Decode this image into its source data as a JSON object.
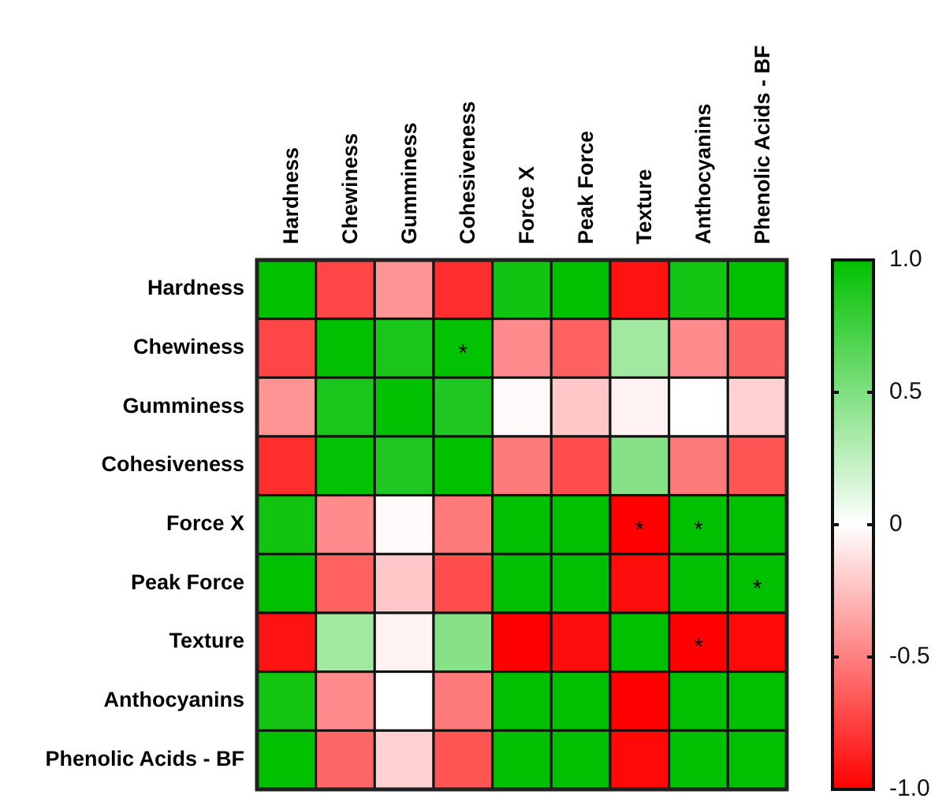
{
  "chart_data": {
    "type": "heatmap",
    "categories": [
      "Hardness",
      "Chewiness",
      "Gumminess",
      "Cohesiveness",
      "Force X",
      "Peak Force",
      "Texture",
      "Anthocyanins",
      "Phenolic Acids - BF"
    ],
    "y_categories": [
      "Hardness",
      "Chewiness",
      "Gumminess",
      "Cohesiveness",
      "Force X",
      "Peak Force",
      "Texture",
      "Anthocyanins",
      "Phenolic Acids - BF"
    ],
    "cells": [
      [
        1,
        -0.73,
        -0.42,
        -0.82,
        0.93,
        1,
        -0.93,
        0.92,
        1
      ],
      [
        -0.73,
        1,
        0.9,
        0.99,
        -0.45,
        -0.62,
        0.37,
        -0.45,
        -0.6
      ],
      [
        -0.42,
        0.9,
        1,
        0.87,
        -0.02,
        -0.22,
        -0.05,
        0,
        -0.18
      ],
      [
        -0.82,
        0.99,
        0.87,
        1,
        -0.52,
        -0.7,
        0.47,
        -0.52,
        -0.67
      ],
      [
        0.93,
        -0.45,
        -0.02,
        -0.52,
        1,
        1,
        -1,
        1,
        1
      ],
      [
        1,
        -0.62,
        -0.22,
        -0.7,
        1,
        1,
        -0.95,
        1,
        1
      ],
      [
        -0.93,
        0.37,
        -0.05,
        0.47,
        -1,
        -0.95,
        1,
        -1,
        -0.97
      ],
      [
        0.92,
        -0.45,
        0,
        -0.52,
        1,
        1,
        -1,
        1,
        1
      ],
      [
        1,
        -0.6,
        -0.18,
        -0.67,
        1,
        1,
        -0.97,
        1,
        1
      ]
    ],
    "cell_labels": [
      [
        null,
        null,
        null,
        null,
        null,
        null,
        null,
        null,
        null
      ],
      [
        null,
        null,
        null,
        "*",
        null,
        null,
        null,
        null,
        null
      ],
      [
        null,
        null,
        null,
        null,
        null,
        null,
        null,
        null,
        null
      ],
      [
        null,
        null,
        null,
        null,
        null,
        null,
        null,
        null,
        null
      ],
      [
        null,
        null,
        null,
        null,
        null,
        null,
        "*",
        "*",
        null
      ],
      [
        null,
        null,
        null,
        null,
        null,
        null,
        null,
        null,
        "*"
      ],
      [
        null,
        null,
        null,
        null,
        null,
        null,
        null,
        "*",
        null
      ],
      [
        null,
        null,
        null,
        null,
        null,
        null,
        null,
        null,
        null
      ],
      [
        null,
        null,
        null,
        null,
        null,
        null,
        null,
        null,
        null
      ]
    ],
    "clim": [
      -1,
      1
    ],
    "cticks": [
      {
        "value": 1,
        "label": "1.0"
      },
      0.5,
      0,
      -0.5,
      {
        "value": -1,
        "label": "-1.0"
      }
    ]
  }
}
